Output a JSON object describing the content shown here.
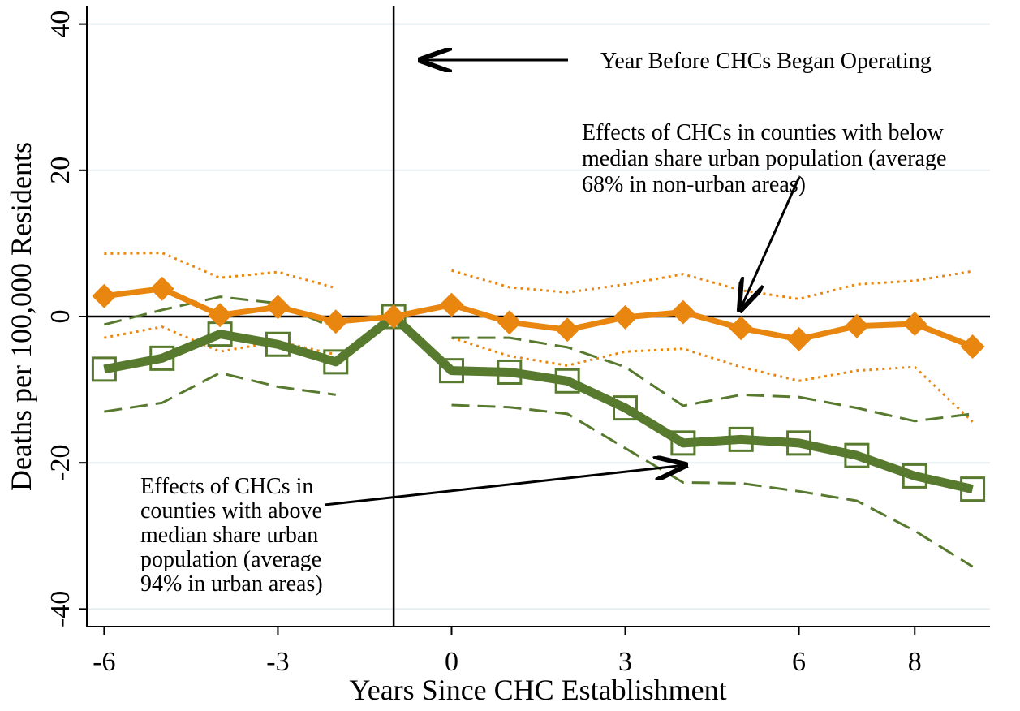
{
  "chart_data": {
    "type": "line",
    "xlabel": "Years Since CHC Establishment",
    "ylabel": "Deaths per 100,000 Residents",
    "x": [
      -6,
      -5,
      -4,
      -3,
      -2,
      -1,
      0,
      1,
      2,
      3,
      4,
      5,
      6,
      7,
      8,
      9
    ],
    "xlim": [
      -6.3,
      9.3
    ],
    "xticks": [
      -6,
      -3,
      0,
      3,
      6,
      8
    ],
    "ylim": [
      -42.4,
      42.4
    ],
    "yticks": [
      -40,
      -20,
      0,
      20,
      40
    ],
    "grid": true,
    "reference_lines": {
      "x": -1,
      "y": 0
    },
    "series": [
      {
        "color": "#e8860f",
        "style": "dot",
        "width": 3,
        "values": [
          8.6,
          8.7,
          5.3,
          6.1,
          3.9,
          null,
          6.3,
          4.0,
          3.3,
          4.4,
          5.8,
          3.6,
          2.4,
          4.4,
          4.9,
          6.2
        ]
      },
      {
        "color": "#e8860f",
        "style": "dot",
        "width": 3,
        "values": [
          -2.9,
          -1.4,
          -4.8,
          -3.4,
          -5.2,
          null,
          -2.9,
          -5.4,
          -6.7,
          -4.8,
          -4.4,
          -6.9,
          -8.8,
          -7.4,
          -6.9,
          -14.4
        ]
      },
      {
        "color": "#587a2e",
        "style": "dash",
        "width": 3,
        "values": [
          -1.1,
          0.9,
          2.7,
          1.8,
          -1.7,
          null,
          -2.9,
          -2.9,
          -4.2,
          -6.9,
          -12.2,
          -10.7,
          -11.0,
          -12.5,
          -14.3,
          -13.3
        ]
      },
      {
        "color": "#587a2e",
        "style": "dash",
        "width": 3,
        "values": [
          -13.0,
          -11.8,
          -7.7,
          -9.6,
          -10.7,
          null,
          -12.1,
          -12.4,
          -13.3,
          -18.0,
          -22.7,
          -22.8,
          -23.9,
          -25.2,
          -29.3,
          -34.2
        ]
      },
      {
        "color": "#587a2e",
        "style": "solid",
        "width": 11,
        "marker": "square",
        "values": [
          -7.2,
          -5.7,
          -2.4,
          -3.8,
          -6.2,
          0,
          -7.4,
          -7.6,
          -8.8,
          -12.5,
          -17.3,
          -16.8,
          -17.3,
          -19.0,
          -21.8,
          -23.6
        ]
      },
      {
        "color": "#e8860f",
        "style": "solid",
        "width": 7,
        "marker": "diamond",
        "values": [
          2.8,
          3.8,
          0.2,
          1.3,
          -0.7,
          0,
          1.6,
          -0.8,
          -1.8,
          -0.1,
          0.6,
          -1.6,
          -3.1,
          -1.3,
          -1.0,
          -4.1
        ]
      }
    ],
    "annotations": [
      {
        "lines": [
          "Year Before CHCs Began Operating"
        ]
      },
      {
        "lines": [
          "Effects of CHCs in counties with below",
          "median share urban population (average",
          "68% in non-urban areas)"
        ]
      },
      {
        "lines": [
          "Effects of CHCs in",
          "counties with above",
          "median share urban",
          "population (average",
          "94% in urban areas)"
        ]
      }
    ]
  }
}
